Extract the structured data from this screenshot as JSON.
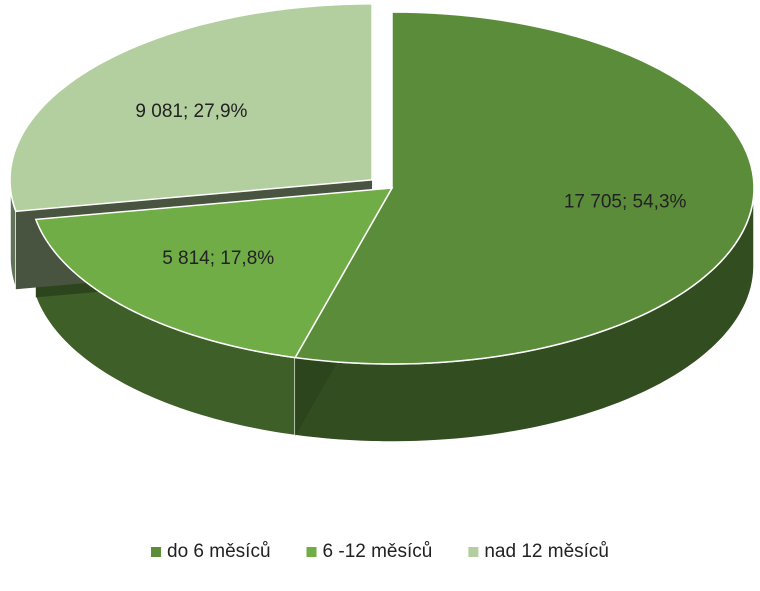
{
  "chart_data": {
    "type": "pie3d",
    "categories": [
      "do 6 měsíců",
      "6 -12 měsíců",
      "nad 12 měsíců"
    ],
    "values": [
      17705,
      5814,
      9081
    ],
    "value_labels": [
      "17 705; 54,3%",
      "5 814; 17,8%",
      "9 081; 27,9%"
    ],
    "colors": [
      "#5b8c3a",
      "#70ad47",
      "#b3cfa0"
    ],
    "exploded": [
      false,
      false,
      true
    ],
    "legend": "bottom"
  }
}
